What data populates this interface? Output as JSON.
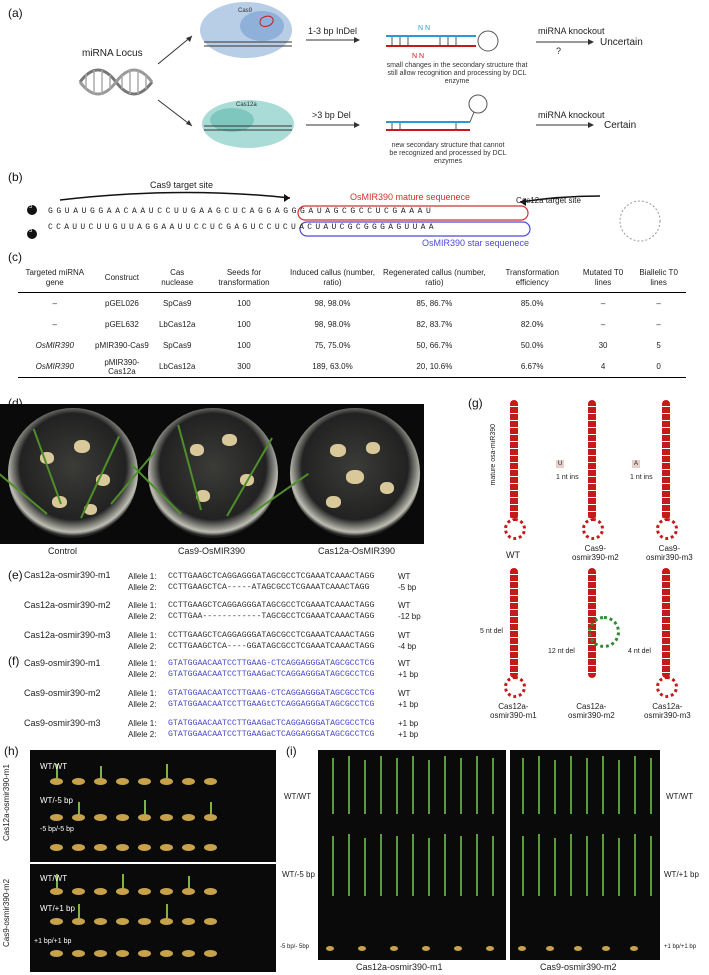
{
  "panels": {
    "a": "(a)",
    "b": "(b)",
    "c": "(c)",
    "d": "(d)",
    "e": "(e)",
    "f": "(f)",
    "g": "(g)",
    "h": "(h)",
    "i": "(i)"
  },
  "panel_a": {
    "locus_label": "miRNA Locus",
    "cas9_label": "Cas9",
    "cas12a_label": "Cas12a",
    "cas9_outcome": "1-3 bp InDel",
    "cas12a_outcome": ">3 bp Del",
    "top_caption": "small changes in the secondary structure that still allow recognition and processing by DCL enzyme",
    "bottom_caption": "new secondary structure that cannot be recognized and processed by DCL enzymes",
    "ko_label": "miRNA knockout",
    "question": "?",
    "uncertain": "Uncertain",
    "certain": "Certain"
  },
  "panel_b": {
    "five_prime": "5'",
    "three_prime": "3'",
    "cas9_site": "Cas9 target site",
    "mature": "OsMIR390 mature sequenece",
    "cas12a_site": "Cas12a target site",
    "star": "OsMIR390 star sequenece",
    "top_strand": "GGUAUGGAACAAUCCUUGAAGCUCAGGAGGGAUAGCGCCUCGAAAU",
    "bottom_strand": "CCAUUCUUGUUAGGAAUUCCUCGAGUCCUCUACUAUCGCGGGAGUUAA"
  },
  "table": {
    "headers": [
      "Targeted miRNA gene",
      "Construct",
      "Cas nuclease",
      "Seeds for transformation",
      "Induced callus (number, ratio)",
      "Regenerated callus (number, ratio)",
      "Transformation efficiency",
      "Mutated T0 lines",
      "Biallelic T0 lines"
    ],
    "rows": [
      [
        "–",
        "pGEL026",
        "SpCas9",
        "100",
        "98, 98.0%",
        "85, 86.7%",
        "85.0%",
        "–",
        "–"
      ],
      [
        "–",
        "pGEL632",
        "LbCas12a",
        "100",
        "98, 98.0%",
        "82, 83.7%",
        "82.0%",
        "–",
        "–"
      ],
      [
        "OsMIR390",
        "pMIR390-Cas9",
        "SpCas9",
        "100",
        "75, 75.0%",
        "50, 66.7%",
        "50.0%",
        "30",
        "5"
      ],
      [
        "OsMIR390",
        "pMIR390-Cas12a",
        "LbCas12a",
        "300",
        "189, 63.0%",
        "20, 10.6%",
        "6.67%",
        "4",
        "0"
      ]
    ]
  },
  "panel_d": {
    "labels": [
      "Control",
      "Cas9-OsMIR390",
      "Cas12a-OsMIR390"
    ]
  },
  "panel_e": {
    "lines": [
      {
        "name": "Cas12a-osmir390-m1",
        "a1_label": "Allele 1:",
        "a1": "CCTTGAAGCTCAGGAGGGATAGCGCCTCGAAATCAAACTAGG",
        "a1_tag": "WT",
        "a2_label": "Allele 2:",
        "a2": "CCTTGAAGCTCA-----ATAGCGCCTCGAAATCAAACTAGG",
        "a2_tag": "-5 bp"
      },
      {
        "name": "Cas12a-osmir390-m2",
        "a1_label": "Allele 1:",
        "a1": "CCTTGAAGCTCAGGAGGGATAGCGCCTCGAAATCAAACTAGG",
        "a1_tag": "WT",
        "a2_label": "Allele 2:",
        "a2": "CCTTGAA------------TAGCGCCTCGAAATCAAACTAGG",
        "a2_tag": "-12 bp"
      },
      {
        "name": "Cas12a-osmir390-m3",
        "a1_label": "Allele 1:",
        "a1": "CCTTGAAGCTCAGGAGGGATAGCGCCTCGAAATCAAACTAGG",
        "a1_tag": "WT",
        "a2_label": "Allele 2:",
        "a2": "CCTTGAAGCTCA----GGATAGCGCCTCGAAATCAAACTAGG",
        "a2_tag": "-4 bp"
      }
    ]
  },
  "panel_f": {
    "lines": [
      {
        "name": "Cas9-osmir390-m1",
        "a1_label": "Allele 1:",
        "a1": "GTATGGAACAATCCTTGAAG-CTCAGGAGGGATAGCGCCTCG",
        "a1_tag": "WT",
        "a2_label": "Allele 2:",
        "a2": "GTATGGAACAATCCTTGAAGaCTCAGGAGGGATAGCGCCTCG",
        "a2_tag": "+1 bp"
      },
      {
        "name": "Cas9-osmir390-m2",
        "a1_label": "Allele 1:",
        "a1": "GTATGGAACAATCCTTGAAG-CTCAGGAGGGATAGCGCCTCG",
        "a1_tag": "WT",
        "a2_label": "Allele 2:",
        "a2": "GTATGGAACAATCCTTGAAGtCTCAGGAGGGATAGCGCCTCG",
        "a2_tag": "+1 bp"
      },
      {
        "name": "Cas9-osmir390-m3",
        "a1_label": "Allele 1:",
        "a1": "GTATGGAACAATCCTTGAAGaCTCAGGAGGGATAGCGCCTCG",
        "a1_tag": "+1 bp",
        "a2_label": "Allele 2:",
        "a2": "GTATGGAACAATCCTTGAAGaCTCAGGAGGGATAGCGCCTCG",
        "a2_tag": "+1 bp"
      }
    ]
  },
  "panel_g": {
    "mature_label": "mature osa-miR390",
    "labels": [
      "WT",
      "Cas9-\nosmir390-m2",
      "Cas9-\nosmir390-m3",
      "Cas12a-\nosmir390-m1",
      "Cas12a-\nosmir390-m2",
      "Cas12a-\nosmir390-m3"
    ],
    "annot": [
      "1 nt ins",
      "1 nt ins",
      "5 nt del",
      "12 nt del",
      "4 nt del"
    ],
    "boxes": [
      "U",
      "A"
    ]
  },
  "panel_h": {
    "group1": "Cas12a-osmir390-m1",
    "group2": "Cas9-osmir390-m2",
    "rows1": [
      "WT/WT",
      "WT/-5 bp",
      "-5 bp/-5 bp"
    ],
    "rows2": [
      "WT/WT",
      "WT/+1 bp",
      "+1 bp/+1 bp"
    ]
  },
  "panel_i": {
    "left_rows": [
      "WT/WT",
      "WT/-5 bp",
      "-5 bp/- 5bp"
    ],
    "right_rows": [
      "WT/WT",
      "WT/+1 bp",
      "+1 bp/+1 bp"
    ],
    "captions": [
      "Cas12a-osmir390-m1",
      "Cas9-osmir390-m2"
    ]
  }
}
